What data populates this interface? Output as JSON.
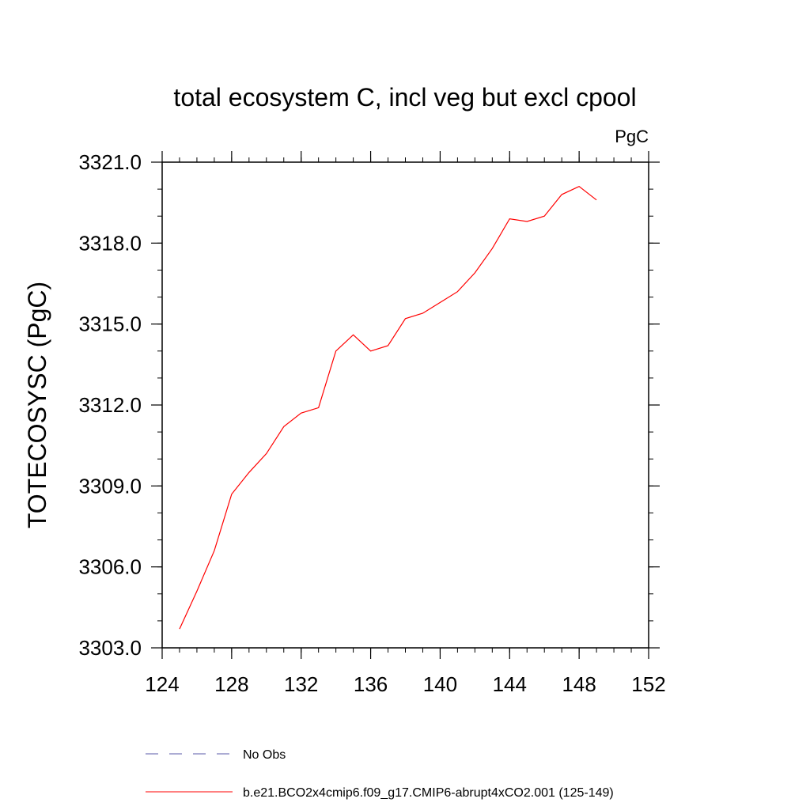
{
  "chart_data": {
    "type": "line",
    "title": "total ecosystem C, incl veg but excl cpool",
    "units_label": "PgC",
    "ylabel": "TOTECOSYSC  (PgC)",
    "xlabel": "",
    "xlim": [
      124,
      152
    ],
    "ylim": [
      3303.0,
      3321.0
    ],
    "x_ticks": [
      124,
      128,
      132,
      136,
      140,
      144,
      148,
      152
    ],
    "y_ticks": [
      "3303.0",
      "3306.0",
      "3309.0",
      "3312.0",
      "3315.0",
      "3318.0",
      "3321.0"
    ],
    "x": [
      125,
      126,
      127,
      128,
      129,
      130,
      131,
      132,
      133,
      134,
      135,
      136,
      137,
      138,
      139,
      140,
      141,
      142,
      143,
      144,
      145,
      146,
      147,
      148,
      149
    ],
    "series": [
      {
        "name": "b.e21.BCO2x4cmip6.f09_g17.CMIP6-abrupt4xCO2.001 (125-149)",
        "color": "#ff0000",
        "values": [
          3303.7,
          3305.1,
          3306.6,
          3308.7,
          3309.5,
          3310.2,
          3311.2,
          3311.7,
          3311.9,
          3314.0,
          3314.6,
          3314.0,
          3314.2,
          3315.2,
          3315.4,
          3315.8,
          3316.2,
          3316.9,
          3317.8,
          3318.9,
          3318.8,
          3319.0,
          3319.8,
          3320.1,
          3319.6
        ]
      }
    ],
    "legend": {
      "placement": "bottom",
      "entries": [
        {
          "label": "No Obs",
          "color": "#5a5aaa",
          "dash": true
        },
        {
          "label": "b.e21.BCO2x4cmip6.f09_g17.CMIP6-abrupt4xCO2.001 (125-149)",
          "color": "#ff0000",
          "dash": false
        }
      ]
    },
    "grid": false
  }
}
